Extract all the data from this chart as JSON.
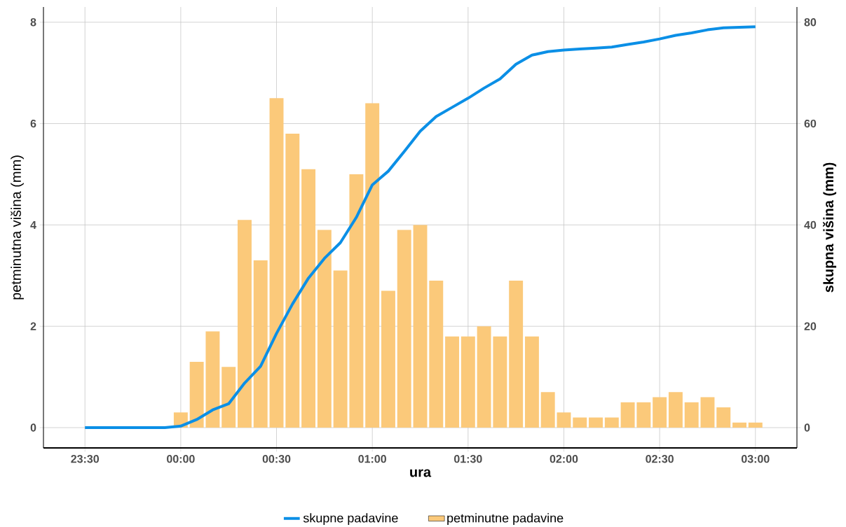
{
  "chart_data": {
    "type": "bar",
    "xlabel": "ura",
    "ylabel": "petminutna višina (mm)",
    "y2label": "skupna višina (mm)",
    "xlim": [
      "2000-01-01T23:17",
      "2000-01-02T03:13"
    ],
    "ylim": [
      -0.4,
      8.3
    ],
    "y2lim": [
      -4,
      83
    ],
    "xticks": [
      {
        "value": "2000-01-01T23:30",
        "label": "23:30"
      },
      {
        "value": "2000-01-02T00:00",
        "label": "00:00"
      },
      {
        "value": "2000-01-02T00:30",
        "label": "00:30"
      },
      {
        "value": "2000-01-02T01:00",
        "label": "01:00"
      },
      {
        "value": "2000-01-02T01:30",
        "label": "01:30"
      },
      {
        "value": "2000-01-02T02:00",
        "label": "02:00"
      },
      {
        "value": "2000-01-02T02:30",
        "label": "02:30"
      },
      {
        "value": "2000-01-02T03:00",
        "label": "03:00"
      }
    ],
    "yticks": [
      0,
      2,
      4,
      6,
      8
    ],
    "y2ticks": [
      0,
      20,
      40,
      60,
      80
    ],
    "grid": true,
    "legend": "bottom",
    "series": [
      {
        "name": "skupne padavine",
        "type": "line",
        "axis": "y2",
        "color": "#0b8fe6",
        "x": [
          "2000-01-01T23:30",
          "2000-01-01T23:35",
          "2000-01-01T23:40",
          "2000-01-01T23:45",
          "2000-01-01T23:50",
          "2000-01-01T23:55",
          "2000-01-02T00:00",
          "2000-01-02T00:05",
          "2000-01-02T00:10",
          "2000-01-02T00:15",
          "2000-01-02T00:20",
          "2000-01-02T00:25",
          "2000-01-02T00:30",
          "2000-01-02T00:35",
          "2000-01-02T00:40",
          "2000-01-02T00:45",
          "2000-01-02T00:50",
          "2000-01-02T00:55",
          "2000-01-02T01:00",
          "2000-01-02T01:05",
          "2000-01-02T01:10",
          "2000-01-02T01:15",
          "2000-01-02T01:20",
          "2000-01-02T01:25",
          "2000-01-02T01:30",
          "2000-01-02T01:35",
          "2000-01-02T01:40",
          "2000-01-02T01:45",
          "2000-01-02T01:50",
          "2000-01-02T01:55",
          "2000-01-02T02:00",
          "2000-01-02T02:05",
          "2000-01-02T02:10",
          "2000-01-02T02:15",
          "2000-01-02T02:20",
          "2000-01-02T02:25",
          "2000-01-02T02:30",
          "2000-01-02T02:35",
          "2000-01-02T02:40",
          "2000-01-02T02:45",
          "2000-01-02T02:50",
          "2000-01-02T02:55",
          "2000-01-02T03:00"
        ],
        "values": [
          0,
          0,
          0,
          0,
          0,
          0,
          0.3,
          1.6,
          3.5,
          4.7,
          8.8,
          12.1,
          18.6,
          24.4,
          29.5,
          33.4,
          36.5,
          41.5,
          47.9,
          50.6,
          54.5,
          58.5,
          61.4,
          63.2,
          65,
          67,
          68.8,
          71.7,
          73.5,
          74.2,
          74.5,
          74.7,
          74.9,
          75.1,
          75.6,
          76.1,
          76.7,
          77.4,
          77.9,
          78.5,
          78.9,
          79.0,
          79.1
        ]
      },
      {
        "name": "petminutne padavine",
        "color": "#fbc97a",
        "x": [
          "2000-01-02T00:00",
          "2000-01-02T00:05",
          "2000-01-02T00:10",
          "2000-01-02T00:15",
          "2000-01-02T00:20",
          "2000-01-02T00:25",
          "2000-01-02T00:30",
          "2000-01-02T00:35",
          "2000-01-02T00:40",
          "2000-01-02T00:45",
          "2000-01-02T00:50",
          "2000-01-02T00:55",
          "2000-01-02T01:00",
          "2000-01-02T01:05",
          "2000-01-02T01:10",
          "2000-01-02T01:15",
          "2000-01-02T01:20",
          "2000-01-02T01:25",
          "2000-01-02T01:30",
          "2000-01-02T01:35",
          "2000-01-02T01:40",
          "2000-01-02T01:45",
          "2000-01-02T01:50",
          "2000-01-02T01:55",
          "2000-01-02T02:00",
          "2000-01-02T02:05",
          "2000-01-02T02:10",
          "2000-01-02T02:15",
          "2000-01-02T02:20",
          "2000-01-02T02:25",
          "2000-01-02T02:30",
          "2000-01-02T02:35",
          "2000-01-02T02:40",
          "2000-01-02T02:45",
          "2000-01-02T02:50",
          "2000-01-02T02:55",
          "2000-01-02T03:00"
        ],
        "values": [
          0.3,
          1.3,
          1.9,
          1.2,
          4.1,
          3.3,
          6.5,
          5.8,
          5.1,
          3.9,
          3.1,
          5.0,
          6.4,
          2.7,
          3.9,
          4.0,
          2.9,
          1.8,
          1.8,
          2.0,
          1.8,
          2.9,
          1.8,
          0.7,
          0.3,
          0.2,
          0.2,
          0.2,
          0.5,
          0.5,
          0.6,
          0.7,
          0.5,
          0.6,
          0.4,
          0.1,
          0.1
        ]
      }
    ]
  }
}
